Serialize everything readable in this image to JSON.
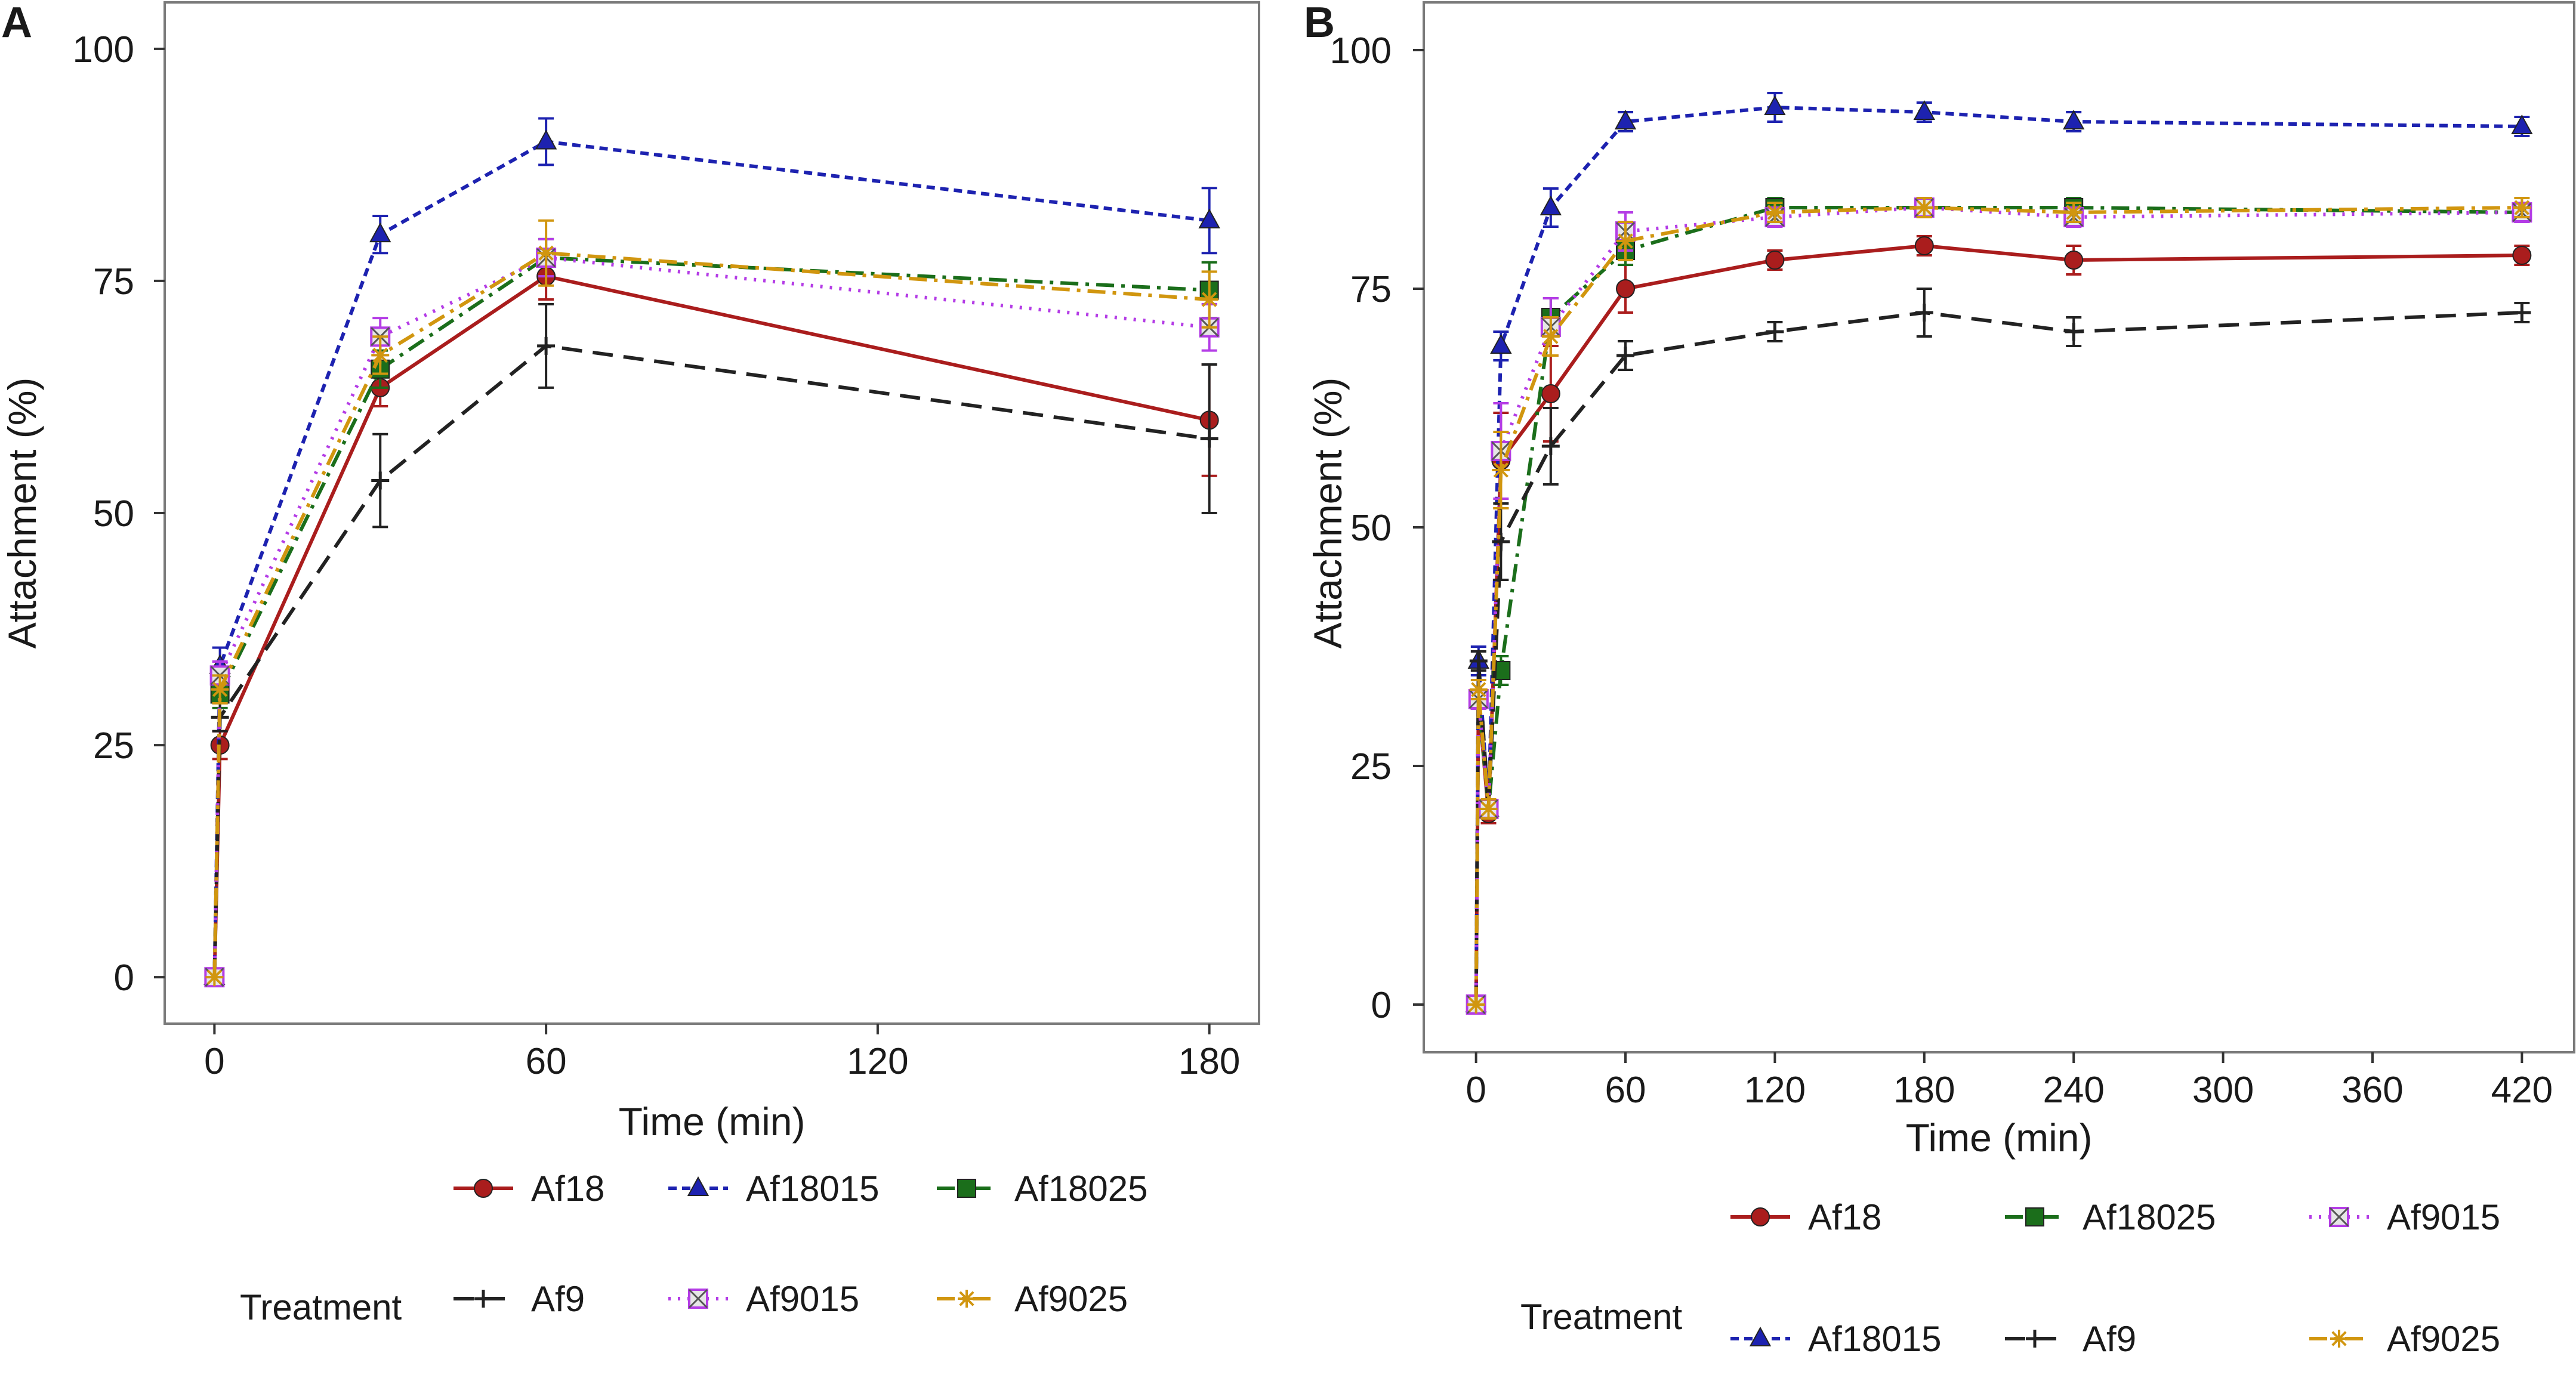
{
  "colors": {
    "Af18": "#aa1d1d",
    "Af18015": "#1d22b0",
    "Af18025": "#1b6e1b",
    "Af9": "#222222",
    "Af9015": "#b43ce6",
    "Af9025": "#d1960f",
    "frame": "#7a7a7a"
  },
  "chart_data": [
    {
      "panel_label": "A",
      "type": "line",
      "xlabel": "Time (min)",
      "ylabel": "Attachment (%)",
      "xlim": [
        -9,
        189
      ],
      "ylim": [
        -5,
        105
      ],
      "xticks": [
        0,
        60,
        120,
        180
      ],
      "yticks": [
        0,
        25,
        50,
        75,
        100
      ],
      "grid": false,
      "x": [
        0,
        1,
        30,
        60,
        180
      ],
      "series": [
        {
          "name": "Af18",
          "values": [
            0,
            25,
            63.5,
            75.5,
            60
          ],
          "err": [
            0,
            1.5,
            2,
            2.5,
            6
          ]
        },
        {
          "name": "Af18015",
          "values": [
            0,
            33.5,
            80,
            90,
            81.5
          ],
          "err": [
            0,
            2,
            2,
            2.5,
            3.5
          ]
        },
        {
          "name": "Af18025",
          "values": [
            0,
            30.5,
            65.5,
            77.5,
            74
          ],
          "err": [
            0,
            1.5,
            2,
            2,
            3
          ]
        },
        {
          "name": "Af9",
          "values": [
            0,
            28,
            53.5,
            68,
            58
          ],
          "err": [
            0,
            1.5,
            5,
            4.5,
            8
          ]
        },
        {
          "name": "Af9015",
          "values": [
            0,
            32.5,
            69,
            77.5,
            70
          ],
          "err": [
            0,
            1.5,
            2,
            2,
            2.5
          ]
        },
        {
          "name": "Af9025",
          "values": [
            0,
            31,
            67,
            78,
            73
          ],
          "err": [
            0,
            1.5,
            2,
            3.5,
            3
          ]
        }
      ],
      "legend": {
        "title": "Treatment",
        "placement": "bottom",
        "rows": [
          [
            "Af18",
            "Af18015",
            "Af18025"
          ],
          [
            "Af9",
            "Af9015",
            "Af9025"
          ]
        ]
      }
    },
    {
      "panel_label": "B",
      "type": "line",
      "xlabel": "Time (min)",
      "ylabel": "Attachment (%)",
      "xlim": [
        -21,
        441
      ],
      "ylim": [
        -5,
        105
      ],
      "xticks": [
        0,
        60,
        120,
        180,
        240,
        300,
        360,
        420
      ],
      "yticks": [
        0,
        25,
        50,
        75,
        100
      ],
      "grid": false,
      "x": [
        0,
        1,
        5,
        10,
        30,
        60,
        120,
        180,
        240,
        420
      ],
      "series": [
        {
          "name": "Af18",
          "values": [
            0,
            32,
            20,
            57,
            64,
            75,
            78,
            79.5,
            78,
            78.5
          ],
          "err": [
            0,
            1,
            1,
            5,
            5,
            2.5,
            1,
            1,
            1.5,
            1
          ]
        },
        {
          "name": "Af18015",
          "values": [
            0,
            36,
            20.5,
            69,
            83.5,
            92.5,
            94,
            93.5,
            92.5,
            92
          ],
          "err": [
            0,
            1.5,
            1,
            1.5,
            2,
            1,
            1.5,
            1,
            1,
            1
          ]
        },
        {
          "name": "Af18025",
          "values": [
            0,
            32,
            20.5,
            35,
            72,
            79,
            83.5,
            83.5,
            83.5,
            83
          ],
          "err": [
            0,
            1,
            1,
            1.5,
            2,
            1.5,
            1,
            1,
            1,
            1
          ]
        },
        {
          "name": "Af9",
          "values": [
            0,
            36,
            20.5,
            48.5,
            58.5,
            68,
            70.5,
            72.5,
            70.5,
            72.5
          ],
          "err": [
            0,
            1,
            1,
            4,
            4,
            1.5,
            1,
            2.5,
            1.5,
            1
          ]
        },
        {
          "name": "Af9015",
          "values": [
            0,
            32,
            20.5,
            58,
            71,
            81,
            82.5,
            83.5,
            82.5,
            83
          ],
          "err": [
            0,
            1,
            1,
            5,
            3,
            2,
            1,
            1,
            1,
            1
          ]
        },
        {
          "name": "Af9025",
          "values": [
            0,
            33,
            20.5,
            56,
            70,
            80,
            83,
            83.5,
            83,
            83.5
          ],
          "err": [
            0,
            1,
            1,
            4,
            2,
            2,
            1,
            1,
            1,
            1
          ]
        }
      ],
      "legend": {
        "title": "Treatment",
        "placement": "bottom",
        "rows": [
          [
            "Af18",
            "Af18025",
            "Af9015"
          ],
          [
            "Af18015",
            "Af9",
            "Af9025"
          ]
        ]
      }
    }
  ]
}
